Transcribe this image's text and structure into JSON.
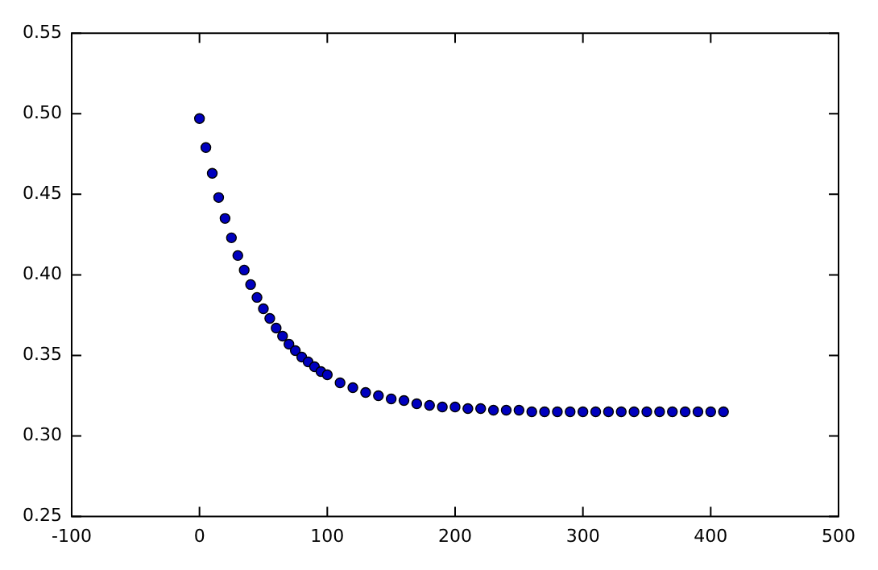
{
  "chart_data": {
    "type": "scatter",
    "marker": "circle",
    "grid": false,
    "x": [
      0,
      5,
      10,
      15,
      20,
      25,
      30,
      35,
      40,
      45,
      50,
      55,
      60,
      65,
      70,
      75,
      80,
      85,
      90,
      95,
      100,
      110,
      120,
      130,
      140,
      150,
      160,
      170,
      180,
      190,
      200,
      210,
      220,
      230,
      240,
      250,
      260,
      270,
      280,
      290,
      300,
      310,
      320,
      330,
      340,
      350,
      360,
      370,
      380,
      390,
      400,
      410
    ],
    "series": [
      {
        "color": "#0000bf",
        "values": [
          0.497,
          0.479,
          0.463,
          0.448,
          0.435,
          0.423,
          0.412,
          0.403,
          0.394,
          0.386,
          0.379,
          0.373,
          0.367,
          0.362,
          0.357,
          0.353,
          0.349,
          0.346,
          0.343,
          0.34,
          0.338,
          0.333,
          0.33,
          0.327,
          0.325,
          0.323,
          0.322,
          0.32,
          0.319,
          0.318,
          0.318,
          0.317,
          0.317,
          0.316,
          0.316,
          0.316,
          0.315,
          0.315,
          0.315,
          0.315,
          0.315,
          0.315,
          0.315,
          0.315,
          0.315,
          0.315,
          0.315,
          0.315,
          0.315,
          0.315,
          0.315,
          0.315
        ]
      }
    ],
    "xlim": [
      -100,
      500
    ],
    "xticks": [
      -100,
      0,
      100,
      200,
      300,
      400,
      500
    ],
    "ylim": [
      0.25,
      0.55
    ],
    "yticks": [
      0.25,
      {
        "value": 0.3,
        "label": "0.30"
      },
      0.35,
      {
        "value": 0.4,
        "label": "0.40"
      },
      0.45,
      {
        "value": 0.5,
        "label": "0.50"
      },
      0.55
    ]
  }
}
